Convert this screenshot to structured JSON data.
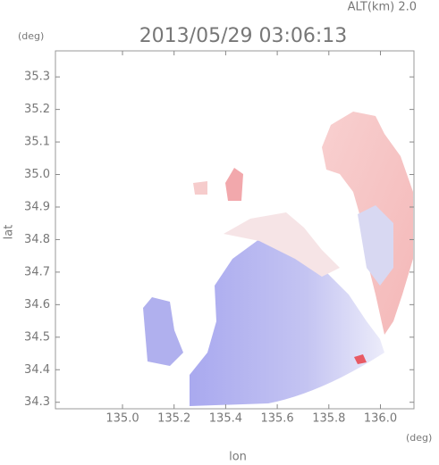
{
  "chart_data": {
    "type": "map",
    "subtitle": "ALT(km) 2.0",
    "title": "2013/05/29 03:06:13",
    "ylabel": "lat",
    "yunit": "(deg)",
    "xlabel": "lon",
    "xunit": "(deg)",
    "xlim": [
      134.74,
      136.13
    ],
    "ylim": [
      34.28,
      35.38
    ],
    "xticks": [
      {
        "value": 135.0,
        "label": "135.0"
      },
      135.2,
      135.4,
      135.6,
      135.8,
      {
        "value": 136.0,
        "label": "136.0"
      }
    ],
    "yticks": [
      34.3,
      34.4,
      34.5,
      34.6,
      34.7,
      34.8,
      34.9,
      {
        "value": 35.0,
        "label": "35.0"
      },
      35.1,
      35.2,
      35.3
    ]
  }
}
